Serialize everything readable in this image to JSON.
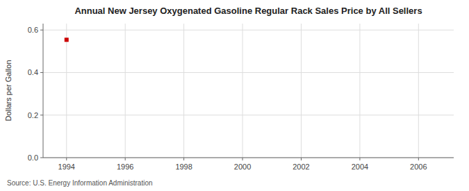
{
  "chart_data": {
    "type": "scatter",
    "title": "Annual New Jersey Oxygenated Gasoline Regular Rack Sales Price by All Sellers",
    "ylabel": "Dollars per Gallon",
    "annotations": [
      "Source: U.S. Energy Information Administration"
    ],
    "x": [
      1994
    ],
    "values": [
      0.554
    ],
    "color": "#cc0000",
    "marker": "square",
    "xlim": [
      1993.2,
      2007.2
    ],
    "ylim": [
      0.0,
      0.63
    ],
    "xticks": [
      1994,
      1996,
      1998,
      2000,
      2002,
      2004,
      2006
    ],
    "yticks": [
      {
        "value": 0.0,
        "label": "0.0"
      },
      0.2,
      0.4,
      0.6
    ],
    "grid": true
  }
}
